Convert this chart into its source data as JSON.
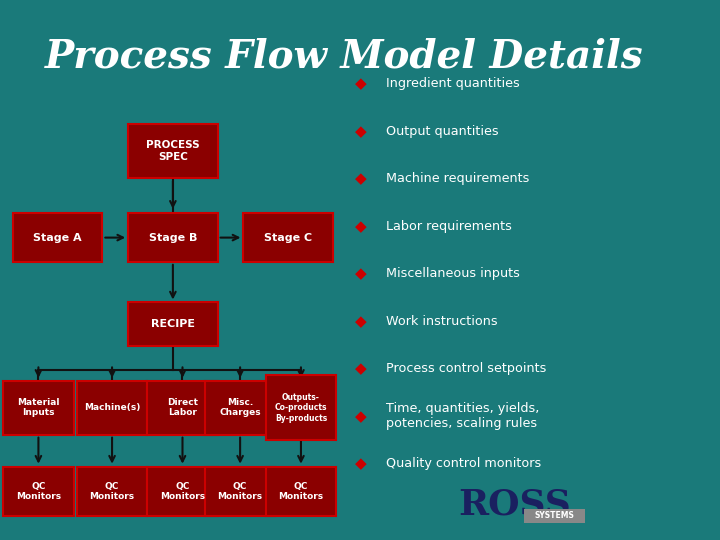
{
  "title": "Process Flow Model Details",
  "title_color": "#ffffff",
  "title_fontsize": 28,
  "bg_color": "#1a7a7a",
  "box_color": "#8b0000",
  "box_text_color": "#ffffff",
  "box_border_color": "#cc0000",
  "arrow_color": "#111111",
  "bullet_color": "#cc0000",
  "bullet_text_color": "#ffffff",
  "bullet_items": [
    "Ingredient quantities",
    "Output quantities",
    "Machine requirements",
    "Labor requirements",
    "Miscellaneous inputs",
    "Work instructions",
    "Process control setpoints",
    "Time, quantities, yields,\npotencies, scaling rules",
    "Quality control monitors"
  ],
  "ross_color": "#1a2060",
  "systems_bg": "#888888",
  "systems_text_color": "#ffffff"
}
